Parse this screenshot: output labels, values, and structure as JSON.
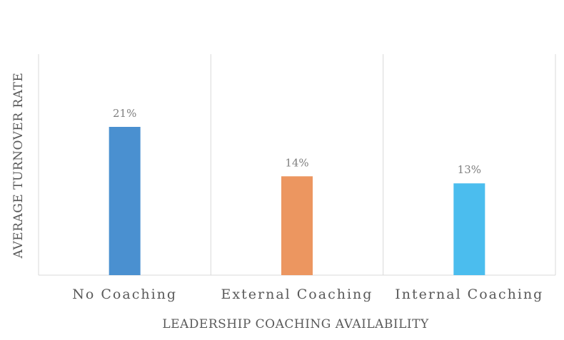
{
  "chart_data": {
    "type": "bar",
    "title": "",
    "xlabel": "LEADERSHIP COACHING AVAILABILITY",
    "ylabel": "AVERAGE TURNOVER RATE",
    "categories": [
      "No Coaching",
      "External Coaching",
      "Internal Coaching"
    ],
    "values": [
      0.21,
      0.14,
      0.13
    ],
    "data_labels": [
      "21%",
      "14%",
      "13%"
    ],
    "colors": [
      "#4a90d0",
      "#ec9660",
      "#4bbdee"
    ],
    "ylim": [
      0,
      0.25
    ],
    "grid": "vertical category separators",
    "legend": "none"
  }
}
